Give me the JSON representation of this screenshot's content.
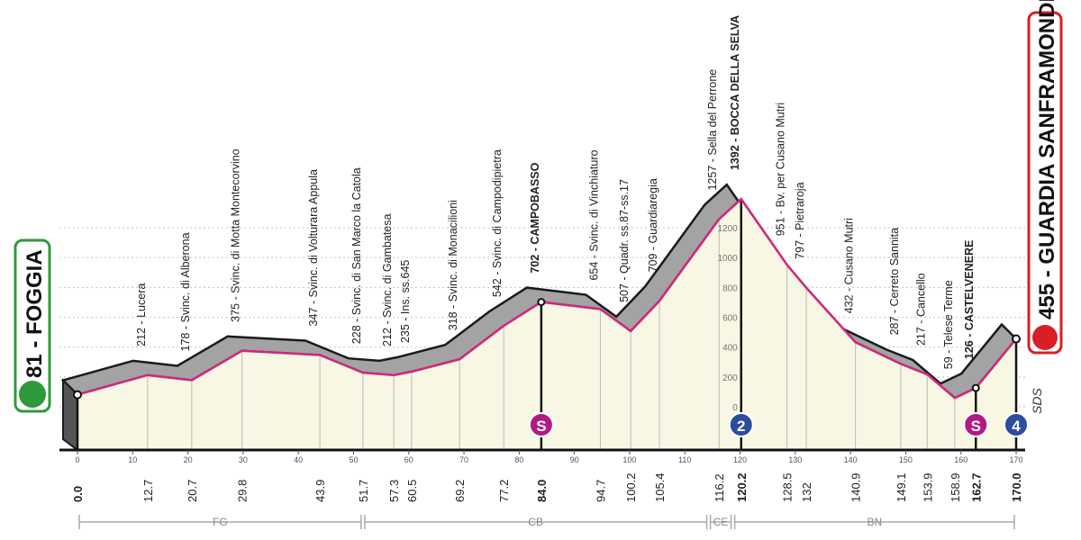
{
  "chart_data": {
    "type": "area",
    "start_label": "81 - FOGGIA",
    "finish_label": "455 - GUARDIA SANFRAMONDI",
    "x": [
      {
        "value": 0,
        "label": "0.0"
      },
      12.7,
      20.7,
      29.8,
      43.9,
      51.7,
      57.3,
      60.5,
      69.2,
      77.2,
      {
        "value": 84,
        "label": "84.0"
      },
      94.7,
      100.2,
      105.4,
      116.2,
      120.2,
      128.5,
      132,
      140.9,
      149.1,
      153.9,
      158.9,
      162.7,
      {
        "value": 170,
        "label": "170.0"
      }
    ],
    "values": [
      81,
      212,
      178,
      375,
      347,
      228,
      212,
      235,
      318,
      542,
      702,
      654,
      507,
      709,
      1257,
      1392,
      951,
      797,
      432,
      287,
      217,
      59,
      126,
      455
    ],
    "labels": [
      "81 - FOGGIA",
      "212 - Lucera",
      "178 - Svinc. di Alberona",
      "375 - Svinc. di Motta Montecorvino",
      "347 - Svinc. di Volturara Appula",
      "228 - Svinc. di San Marco la Catola",
      "212 - Svinc. di Gambatesa",
      "235 - Ins. ss.645",
      "318 - Svinc. di Monacilioni",
      "542 - Svinc. di Campodipietra",
      "702 - CAMPOBASSO",
      "654 - Svinc. di Vinchiaturo",
      "507 - Quadr. ss.87-ss.17",
      "709 - Guardiaregia",
      "1257 - Sella del Perrone",
      "1392 - BOCCA DELLA SELVA",
      "951 - Bv. per Cusano Mutri",
      "797 - Pietraroja",
      "432 - Cusano Mutri",
      "287 - Cerreto Sannita",
      "217 - Cancello",
      "59 - Telese Terme",
      "126 - CASTELVENERE",
      "455 - GUARDIA SANFRAMONDI"
    ],
    "xlim": [
      0,
      170
    ],
    "xticks": [
      0,
      10,
      20,
      30,
      40,
      50,
      60,
      70,
      80,
      90,
      100,
      110,
      120,
      130,
      140,
      150,
      160,
      170
    ],
    "ylim": [
      0,
      1200
    ],
    "yticks": [
      0,
      200,
      400,
      600,
      800,
      1000,
      1200
    ],
    "grid": true,
    "color": "#d4267f",
    "fill": "#f7f7e3",
    "markers": [
      {
        "text": "S",
        "km": 84,
        "color": "#b01a82"
      },
      {
        "text": "2",
        "km": 120.2,
        "color": "#2b4d9c"
      },
      {
        "text": "S",
        "km": 162.7,
        "color": "#b01a82"
      },
      {
        "text": "4",
        "km": 170,
        "color": "#2b4d9c"
      }
    ],
    "regions": [
      {
        "name": "FG",
        "start": 0,
        "end": 51.7
      },
      {
        "name": "CB",
        "start": 51.7,
        "end": 114.3
      },
      {
        "name": "CE",
        "start": 114.3,
        "end": 118.7
      },
      {
        "name": "BN",
        "start": 118.7,
        "end": 170
      }
    ],
    "sponsor": "SDS"
  }
}
